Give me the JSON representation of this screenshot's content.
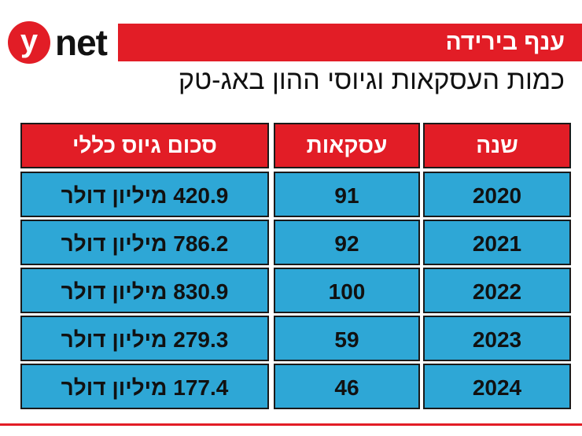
{
  "logo": {
    "mark": "y",
    "text": "net"
  },
  "banner": {
    "title": "ענף בירידה"
  },
  "subtitle": "כמות העסקאות וגיוסי ההון באג-טק",
  "colors": {
    "header_red": "#e21d26",
    "cell_blue": "#2ea7d6"
  },
  "table": {
    "headers": {
      "year": "שנה",
      "deals": "עסקאות",
      "total": "סכום גיוס כללי"
    },
    "rows": [
      {
        "year": "2020",
        "deals": "91",
        "total": "420.9 מיליון דולר"
      },
      {
        "year": "2021",
        "deals": "92",
        "total": "786.2 מיליון דולר"
      },
      {
        "year": "2022",
        "deals": "100",
        "total": "830.9 מיליון דולר"
      },
      {
        "year": "2023",
        "deals": "59",
        "total": "279.3 מיליון דולר"
      },
      {
        "year": "2024",
        "deals": "46",
        "total": "177.4 מיליון דולר"
      }
    ]
  }
}
